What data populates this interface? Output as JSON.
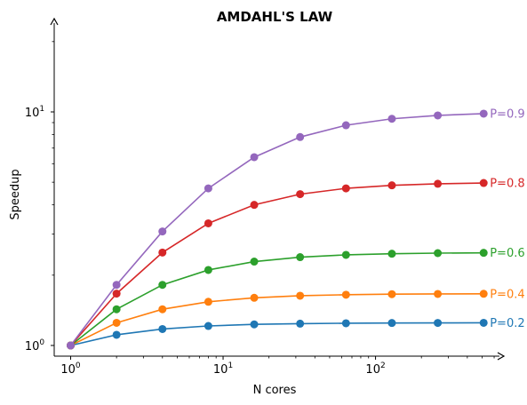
{
  "chart_data": {
    "type": "line",
    "title": "AMDAHL'S LAW",
    "xlabel": "N cores",
    "ylabel": "Speedup",
    "x_scale": "log",
    "y_scale": "log",
    "xlim": [
      0.78,
      650
    ],
    "ylim": [
      0.9,
      24
    ],
    "grid": false,
    "x_ticks": [
      {
        "value": 1,
        "base": "10",
        "exp": "0"
      },
      {
        "value": 10,
        "base": "10",
        "exp": "1"
      },
      {
        "value": 100,
        "base": "10",
        "exp": "2"
      }
    ],
    "y_ticks": [
      {
        "value": 1,
        "base": "10",
        "exp": "0"
      },
      {
        "value": 10,
        "base": "10",
        "exp": "1"
      }
    ],
    "x": [
      1,
      2,
      4,
      8,
      16,
      32,
      64,
      128,
      256,
      512
    ],
    "series": [
      {
        "name": "P=0.2",
        "color": "#1f77b4",
        "values": [
          1.0,
          1.111,
          1.176,
          1.212,
          1.231,
          1.24,
          1.245,
          1.248,
          1.249,
          1.25
        ]
      },
      {
        "name": "P=0.4",
        "color": "#ff7f0e",
        "values": [
          1.0,
          1.25,
          1.429,
          1.538,
          1.6,
          1.633,
          1.649,
          1.658,
          1.662,
          1.664
        ]
      },
      {
        "name": "P=0.6",
        "color": "#2ca02c",
        "values": [
          1.0,
          1.429,
          1.818,
          2.105,
          2.286,
          2.388,
          2.443,
          2.471,
          2.485,
          2.493
        ]
      },
      {
        "name": "P=0.8",
        "color": "#d62728",
        "values": [
          1.0,
          1.667,
          2.5,
          3.333,
          4.0,
          4.444,
          4.706,
          4.848,
          4.923,
          4.961
        ]
      },
      {
        "name": "P=0.9",
        "color": "#9467bd",
        "values": [
          1.0,
          1.818,
          3.077,
          4.706,
          6.4,
          7.805,
          8.767,
          9.343,
          9.66,
          9.827
        ]
      }
    ]
  }
}
